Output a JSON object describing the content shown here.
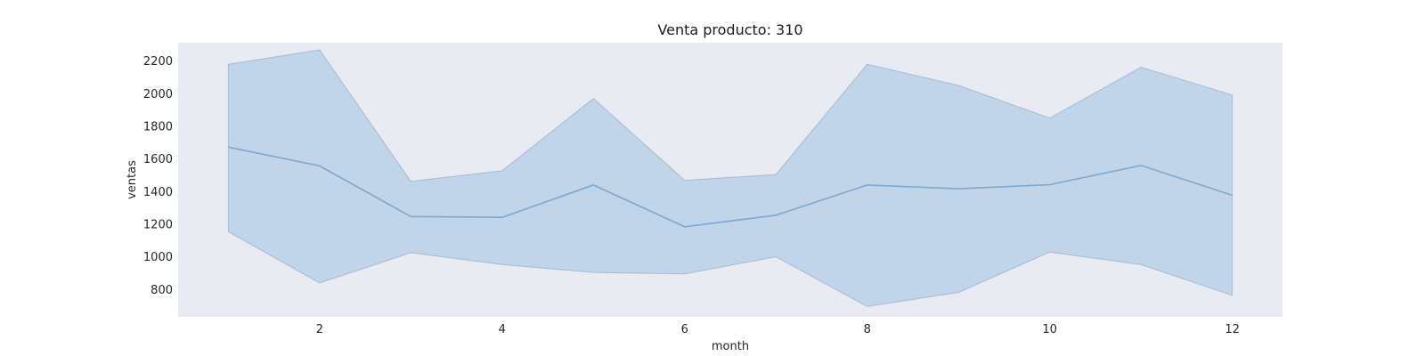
{
  "chart_data": {
    "type": "area",
    "title": "Venta producto: 310",
    "xlabel": "month",
    "ylabel": "ventas",
    "xlim": [
      0.45,
      12.55
    ],
    "ylim": [
      630,
      2310
    ],
    "xticks": [
      2,
      4,
      6,
      8,
      10,
      12
    ],
    "yticks": [
      800,
      1000,
      1200,
      1400,
      1600,
      1800,
      2000,
      2200
    ],
    "grid": false,
    "background_color": "#eaeaf2",
    "series_color": "#7ea7cf",
    "band_color": "#b4cce3",
    "x": [
      1,
      2,
      3,
      4,
      5,
      6,
      7,
      8,
      9,
      10,
      11,
      12
    ],
    "series": [
      {
        "mean": [
          1670,
          1555,
          1245,
          1240,
          1438,
          1182,
          1253,
          1438,
          1415,
          1440,
          1558,
          1375
        ],
        "upper": [
          2178,
          2266,
          1460,
          1525,
          1968,
          1467,
          1502,
          2178,
          2048,
          1848,
          2160,
          1990
        ],
        "lower": [
          1152,
          838,
          1023,
          950,
          902,
          893,
          998,
          693,
          780,
          1027,
          950,
          762
        ]
      }
    ]
  }
}
